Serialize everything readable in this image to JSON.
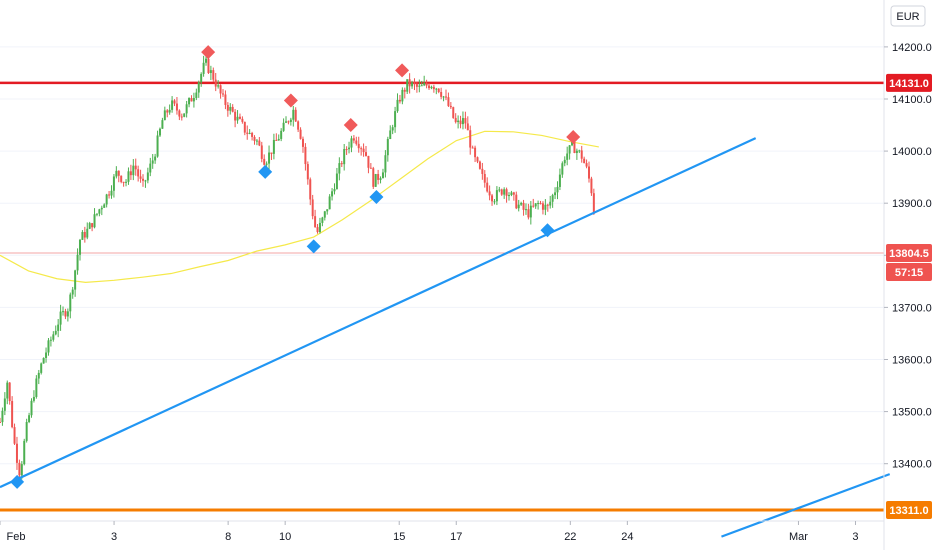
{
  "currency_label": "EUR",
  "price_badges": {
    "resistance": "14131.0",
    "support": "13311.0",
    "last_price": "13804.5",
    "countdown": "57:15"
  },
  "colors": {
    "up": "#26a69a",
    "up_body": "#4caf50",
    "down": "#ef5350",
    "resistance": "#e31b23",
    "support": "#f57c00",
    "trendline": "#2196f3",
    "moving_average": "#f5e94a",
    "price_line": "#f3a5a5",
    "text": "#131722",
    "axis_bg": "#ffffff"
  },
  "chart_data": {
    "type": "candlestick",
    "title": "",
    "xlabel": "",
    "ylabel": "",
    "yaxis": {
      "ticks": [
        13400,
        13500,
        13600,
        13700,
        13800,
        13900,
        14000,
        14100,
        14200
      ],
      "tick_labels": [
        "13400.0",
        "13500.0",
        "13600.0",
        "13700.0",
        "13800.0",
        "13900.0",
        "14000.0",
        "14100.0",
        "14200.0"
      ],
      "range": [
        13290,
        14290
      ]
    },
    "xaxis": {
      "ticks": [
        0,
        4,
        8,
        10,
        14,
        16,
        20,
        22,
        28,
        30
      ],
      "tick_labels": [
        "Feb",
        "3",
        "8",
        "10",
        "15",
        "17",
        "22",
        "24",
        "Mar",
        "3"
      ],
      "range": [
        0,
        31
      ]
    },
    "horizontal_levels": [
      {
        "name": "resistance",
        "value": 14131
      },
      {
        "name": "support",
        "value": 13311
      },
      {
        "name": "last_price",
        "value": 13804.5
      }
    ],
    "trendlines": [
      {
        "from": [
          0,
          13355
        ],
        "to": [
          26.5,
          14025
        ]
      },
      {
        "from": [
          25.3,
          13260
        ],
        "to": [
          31.2,
          13380
        ]
      }
    ],
    "moving_average": [
      [
        0,
        13800
      ],
      [
        1,
        13770
      ],
      [
        2,
        13755
      ],
      [
        3,
        13748
      ],
      [
        4,
        13752
      ],
      [
        5,
        13758
      ],
      [
        6,
        13765
      ],
      [
        7,
        13778
      ],
      [
        8,
        13790
      ],
      [
        9,
        13808
      ],
      [
        10,
        13820
      ],
      [
        11,
        13835
      ],
      [
        12,
        13868
      ],
      [
        13,
        13905
      ],
      [
        14,
        13945
      ],
      [
        15,
        13985
      ],
      [
        16,
        14020
      ],
      [
        17,
        14038
      ],
      [
        18,
        14037
      ],
      [
        19,
        14030
      ],
      [
        20,
        14018
      ],
      [
        21,
        14008
      ]
    ],
    "swing_markers": [
      {
        "kind": "high",
        "x": 7.3,
        "y": 14190
      },
      {
        "kind": "high",
        "x": 10.2,
        "y": 14097
      },
      {
        "kind": "high",
        "x": 12.3,
        "y": 14050
      },
      {
        "kind": "high",
        "x": 14.1,
        "y": 14155
      },
      {
        "kind": "high",
        "x": 20.1,
        "y": 14027
      },
      {
        "kind": "low",
        "x": 9.3,
        "y": 13960
      },
      {
        "kind": "low",
        "x": 11.0,
        "y": 13817
      },
      {
        "kind": "low",
        "x": 13.2,
        "y": 13912
      },
      {
        "kind": "low",
        "x": 19.2,
        "y": 13848
      },
      {
        "kind": "low",
        "x": 0.6,
        "y": 13365
      }
    ],
    "price_path": [
      [
        0,
        13480
      ],
      [
        0.25,
        13560
      ],
      [
        0.5,
        13440
      ],
      [
        0.7,
        13380
      ],
      [
        0.9,
        13460
      ],
      [
        1.2,
        13540
      ],
      [
        1.5,
        13600
      ],
      [
        1.8,
        13640
      ],
      [
        2.1,
        13680
      ],
      [
        2.4,
        13700
      ],
      [
        2.6,
        13760
      ],
      [
        2.8,
        13830
      ],
      [
        3.1,
        13850
      ],
      [
        3.4,
        13880
      ],
      [
        3.8,
        13920
      ],
      [
        4.1,
        13960
      ],
      [
        4.4,
        13940
      ],
      [
        4.7,
        13975
      ],
      [
        5.0,
        13930
      ],
      [
        5.4,
        13990
      ],
      [
        5.7,
        14060
      ],
      [
        6.0,
        14090
      ],
      [
        6.4,
        14070
      ],
      [
        6.8,
        14110
      ],
      [
        7.2,
        14170
      ],
      [
        7.5,
        14140
      ],
      [
        7.8,
        14100
      ],
      [
        8.2,
        14070
      ],
      [
        8.6,
        14040
      ],
      [
        9.0,
        14020
      ],
      [
        9.3,
        13980
      ],
      [
        9.6,
        14010
      ],
      [
        10.0,
        14050
      ],
      [
        10.3,
        14080
      ],
      [
        10.6,
        14020
      ],
      [
        10.9,
        13900
      ],
      [
        11.1,
        13840
      ],
      [
        11.4,
        13880
      ],
      [
        11.8,
        13950
      ],
      [
        12.1,
        14000
      ],
      [
        12.4,
        14030
      ],
      [
        12.8,
        14000
      ],
      [
        13.1,
        13940
      ],
      [
        13.4,
        13960
      ],
      [
        13.7,
        14040
      ],
      [
        14.0,
        14100
      ],
      [
        14.3,
        14130
      ],
      [
        14.7,
        14120
      ],
      [
        15.1,
        14130
      ],
      [
        15.4,
        14120
      ],
      [
        15.7,
        14090
      ],
      [
        16.0,
        14050
      ],
      [
        16.3,
        14060
      ],
      [
        16.6,
        13990
      ],
      [
        16.9,
        13950
      ],
      [
        17.3,
        13910
      ],
      [
        17.7,
        13930
      ],
      [
        18.1,
        13900
      ],
      [
        18.5,
        13880
      ],
      [
        18.9,
        13900
      ],
      [
        19.2,
        13890
      ],
      [
        19.5,
        13930
      ],
      [
        19.8,
        13990
      ],
      [
        20.1,
        14010
      ],
      [
        20.4,
        13990
      ],
      [
        20.6,
        13960
      ],
      [
        20.8,
        13910
      ],
      [
        20.9,
        13810
      ]
    ]
  }
}
